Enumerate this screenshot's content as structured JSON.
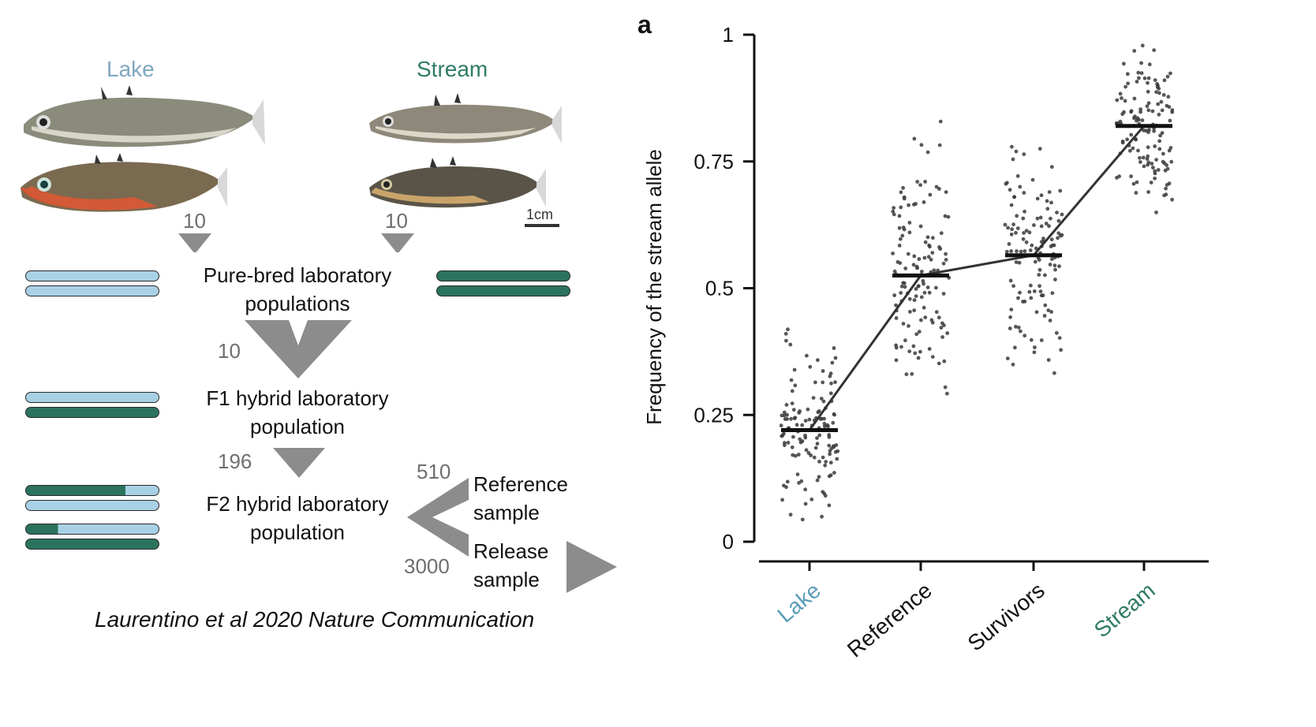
{
  "colors": {
    "lake": "#5c9cb8",
    "stream": "#2f7b66",
    "lake_fill": "#a9d1e6",
    "stream_fill": "#2b735f",
    "arrow_grey": "#8c8c8c",
    "point": "#3a3a3a"
  },
  "left": {
    "lake_title": "Lake",
    "stream_title": "Stream",
    "scale_bar": "1cm",
    "lake_count": "10",
    "stream_count": "10",
    "purebred_label_1": "Pure-bred laboratory",
    "purebred_label_2": "populations",
    "cross_count": "10",
    "f1_label_1": "F1 hybrid laboratory",
    "f1_label_2": "population",
    "f1_count": "196",
    "f2_label_1": "F2 hybrid laboratory",
    "f2_label_2": "population",
    "reference_count": "510",
    "release_count": "3000",
    "reference_label_1": "Reference",
    "reference_label_2": "sample",
    "release_label_1": "Release",
    "release_label_2": "sample",
    "citation": "Laurentino et al 2020 Nature Communication"
  },
  "chart_data": {
    "type": "scatter",
    "panel_label": "a",
    "ylabel": "Frequency of the stream allele",
    "ylim": [
      0,
      1
    ],
    "yticks": [
      "0",
      "0.25",
      "0.5",
      "0.75",
      "1"
    ],
    "categories": [
      "Lake",
      "Reference",
      "Survivors",
      "Stream"
    ],
    "category_colors": [
      "#5c9cb8",
      "#111111",
      "#111111",
      "#2f7b66"
    ],
    "means": [
      0.22,
      0.525,
      0.565,
      0.82
    ],
    "point_ranges": [
      [
        0.0,
        0.5
      ],
      [
        0.22,
        0.92
      ],
      [
        0.22,
        0.84
      ],
      [
        0.56,
        1.0
      ]
    ],
    "points_per_group": 130
  }
}
